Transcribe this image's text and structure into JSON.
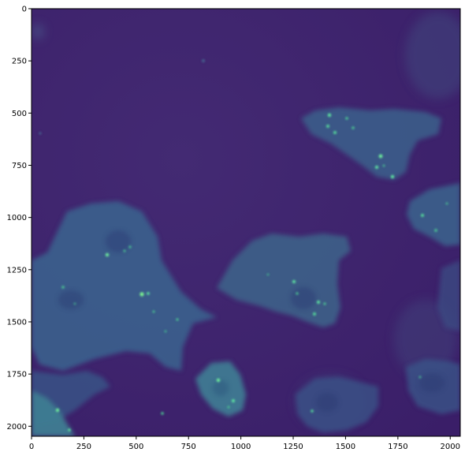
{
  "image": {
    "kind": "fluorescence microscopy",
    "colormap": "viridis",
    "x_range": [
      0,
      2048
    ],
    "y_range": [
      0,
      2048
    ],
    "background_color": "#3b1f6b",
    "cell_color": "#3d6a8f",
    "bright_spot_color": "#42f57a"
  },
  "axes": {
    "x_ticks": [
      {
        "value": 0,
        "label": "0"
      },
      {
        "value": 250,
        "label": "250"
      },
      {
        "value": 500,
        "label": "500"
      },
      {
        "value": 750,
        "label": "750"
      },
      {
        "value": 1000,
        "label": "1000"
      },
      {
        "value": 1250,
        "label": "1250"
      },
      {
        "value": 1500,
        "label": "1500"
      },
      {
        "value": 1750,
        "label": "1750"
      },
      {
        "value": 2000,
        "label": "2000"
      }
    ],
    "y_ticks": [
      {
        "value": 0,
        "label": "0"
      },
      {
        "value": 250,
        "label": "250"
      },
      {
        "value": 500,
        "label": "500"
      },
      {
        "value": 750,
        "label": "750"
      },
      {
        "value": 1000,
        "label": "1000"
      },
      {
        "value": 1250,
        "label": "1250"
      },
      {
        "value": 1500,
        "label": "1500"
      },
      {
        "value": 1750,
        "label": "1750"
      },
      {
        "value": 2000,
        "label": "2000"
      }
    ]
  }
}
